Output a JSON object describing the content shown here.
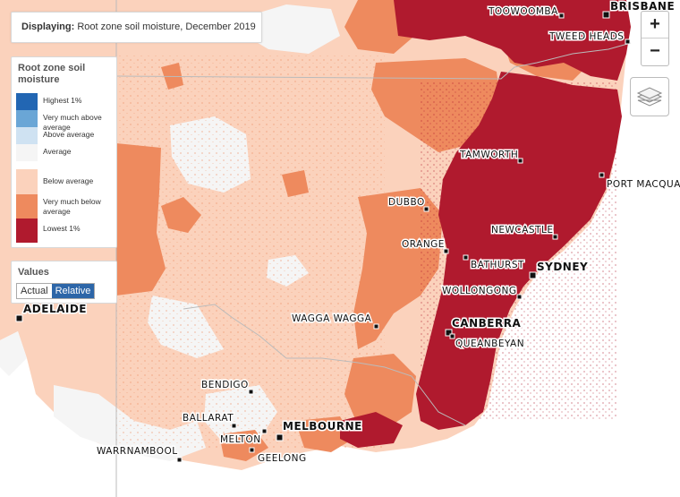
{
  "displaying": {
    "label": "Displaying:",
    "value": "Root zone soil moisture, December 2019"
  },
  "legend": {
    "title": "Root zone soil moisture",
    "items": [
      {
        "label": "Highest 1%",
        "color": "#2266b3"
      },
      {
        "label": "Very much above average",
        "color": "#6aa6d6"
      },
      {
        "label": "Above average",
        "color": "#cfe2f2"
      },
      {
        "label": "Average",
        "color": "#f5f5f5"
      },
      {
        "label": "Below average",
        "color": "#fbd2bc"
      },
      {
        "label": "Very much below average",
        "color": "#ee8a5e"
      },
      {
        "label": "Lowest 1%",
        "color": "#b01a2e"
      }
    ]
  },
  "values": {
    "title": "Values",
    "actual": "Actual",
    "relative": "Relative",
    "selected": "Relative"
  },
  "controls": {
    "zoom_in": "+",
    "zoom_out": "−",
    "layers_icon": "layers-icon"
  },
  "cities": [
    {
      "name": "TOOWOOMBA"
    },
    {
      "name": "BRISBANE"
    },
    {
      "name": "TWEED HEADS"
    },
    {
      "name": "TAMWORTH"
    },
    {
      "name": "PORT MACQUA"
    },
    {
      "name": "DUBBO"
    },
    {
      "name": "NEWCASTLE"
    },
    {
      "name": "ORANGE"
    },
    {
      "name": "BATHURST"
    },
    {
      "name": "SYDNEY"
    },
    {
      "name": "WOLLONGONG"
    },
    {
      "name": "CANBERRA"
    },
    {
      "name": "QUEANBEYAN"
    },
    {
      "name": "WAGGA WAGGA"
    },
    {
      "name": "ADELAIDE"
    },
    {
      "name": "BENDIGO"
    },
    {
      "name": "BALLARAT"
    },
    {
      "name": "MELBOURNE"
    },
    {
      "name": "MELTON"
    },
    {
      "name": "WARRNAMBOOL"
    },
    {
      "name": "GEELONG"
    }
  ]
}
